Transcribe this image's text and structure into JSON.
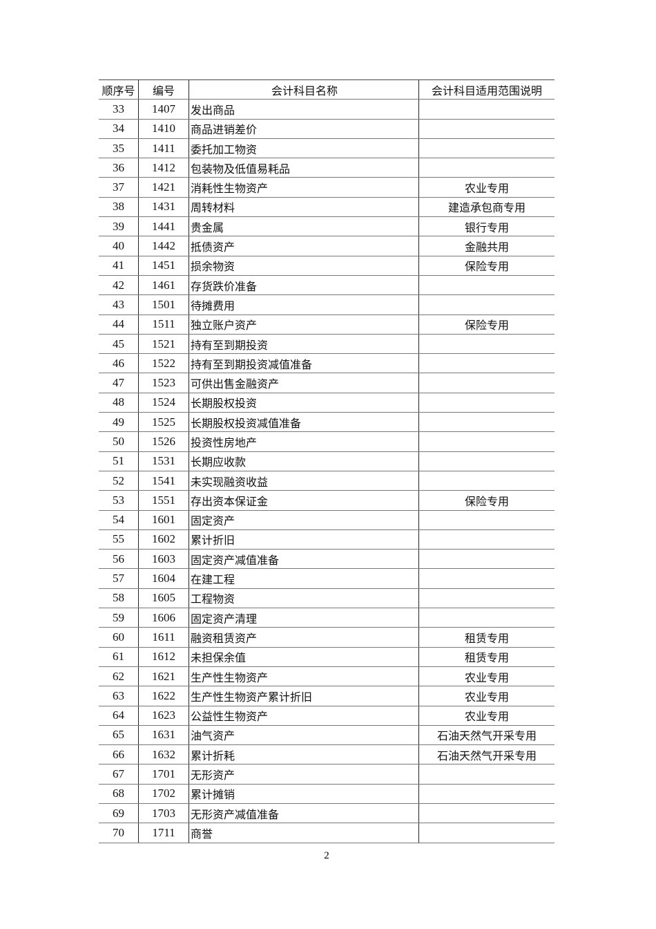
{
  "table": {
    "headers": [
      "顺序号",
      "编号",
      "会计科目名称",
      "会计科目适用范围说明"
    ],
    "rows": [
      [
        "33",
        "1407",
        "发出商品",
        ""
      ],
      [
        "34",
        "1410",
        "商品进销差价",
        ""
      ],
      [
        "35",
        "1411",
        "委托加工物资",
        ""
      ],
      [
        "36",
        "1412",
        "包装物及低值易耗品",
        ""
      ],
      [
        "37",
        "1421",
        "消耗性生物资产",
        "农业专用"
      ],
      [
        "38",
        "1431",
        "周转材料",
        "建造承包商专用"
      ],
      [
        "39",
        "1441",
        "贵金属",
        "银行专用"
      ],
      [
        "40",
        "1442",
        "抵债资产",
        "金融共用"
      ],
      [
        "41",
        "1451",
        "损余物资",
        "保险专用"
      ],
      [
        "42",
        "1461",
        "存货跌价准备",
        ""
      ],
      [
        "43",
        "1501",
        "待摊费用",
        ""
      ],
      [
        "44",
        "1511",
        "独立账户资产",
        "保险专用"
      ],
      [
        "45",
        "1521",
        "持有至到期投资",
        ""
      ],
      [
        "46",
        "1522",
        "持有至到期投资减值准备",
        ""
      ],
      [
        "47",
        "1523",
        "可供出售金融资产",
        ""
      ],
      [
        "48",
        "1524",
        "长期股权投资",
        ""
      ],
      [
        "49",
        "1525",
        "长期股权投资减值准备",
        ""
      ],
      [
        "50",
        "1526",
        "投资性房地产",
        ""
      ],
      [
        "51",
        "1531",
        "长期应收款",
        ""
      ],
      [
        "52",
        "1541",
        "未实现融资收益",
        ""
      ],
      [
        "53",
        "1551",
        "存出资本保证金",
        "保险专用"
      ],
      [
        "54",
        "1601",
        "固定资产",
        ""
      ],
      [
        "55",
        "1602",
        "累计折旧",
        ""
      ],
      [
        "56",
        "1603",
        "固定资产减值准备",
        ""
      ],
      [
        "57",
        "1604",
        "在建工程",
        ""
      ],
      [
        "58",
        "1605",
        "工程物资",
        ""
      ],
      [
        "59",
        "1606",
        "固定资产清理",
        ""
      ],
      [
        "60",
        "1611",
        "融资租赁资产",
        "租赁专用"
      ],
      [
        "61",
        "1612",
        "未担保余值",
        "租赁专用"
      ],
      [
        "62",
        "1621",
        "生产性生物资产",
        "农业专用"
      ],
      [
        "63",
        "1622",
        "生产性生物资产累计折旧",
        "农业专用"
      ],
      [
        "64",
        "1623",
        "公益性生物资产",
        "农业专用"
      ],
      [
        "65",
        "1631",
        "油气资产",
        "石油天然气开采专用"
      ],
      [
        "66",
        "1632",
        "累计折耗",
        "石油天然气开采专用"
      ],
      [
        "67",
        "1701",
        "无形资产",
        ""
      ],
      [
        "68",
        "1702",
        "累计摊销",
        ""
      ],
      [
        "69",
        "1703",
        "无形资产减值准备",
        ""
      ],
      [
        "70",
        "1711",
        "商誉",
        ""
      ]
    ]
  },
  "page_number": "2"
}
